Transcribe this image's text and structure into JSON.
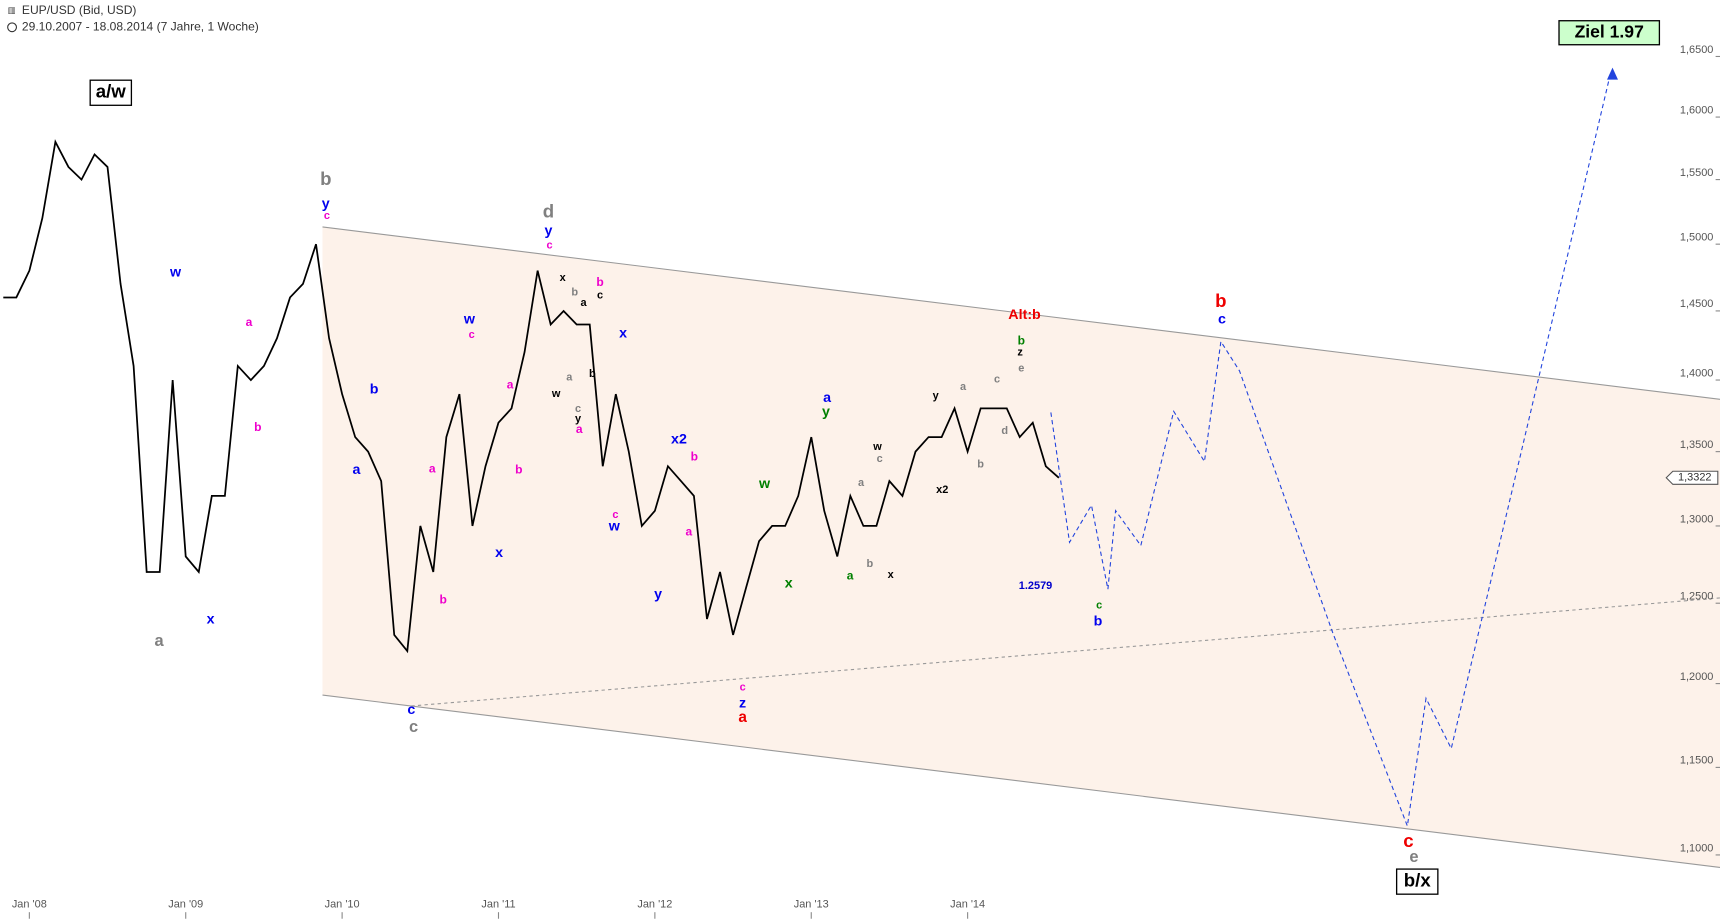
{
  "chart_data": {
    "type": "line",
    "title": "EUP/USD (Bid, USD)",
    "subtitle": "29.10.2007 - 18.08.2014 (7 Jahre, 1 Woche)",
    "color": "#000000",
    "log_scale": true,
    "categories": [
      null,
      null,
      "Jan '08",
      null,
      null,
      null,
      null,
      null,
      null,
      null,
      null,
      null,
      null,
      null,
      "Jan '09",
      null,
      null,
      null,
      null,
      null,
      null,
      null,
      null,
      null,
      null,
      null,
      "Jan '10",
      null,
      null,
      null,
      null,
      null,
      null,
      null,
      null,
      null,
      null,
      null,
      "Jan '11",
      null,
      null,
      null,
      null,
      null,
      null,
      null,
      null,
      null,
      null,
      null,
      "Jan '12",
      null,
      null,
      null,
      null,
      null,
      null,
      null,
      null,
      null,
      null,
      null,
      "Jan '13",
      null,
      null,
      null,
      null,
      null,
      null,
      null,
      null,
      null,
      null,
      null,
      "Jan '14",
      null,
      null,
      null,
      null,
      null,
      null,
      null
    ],
    "values": [
      1.46,
      1.46,
      1.48,
      1.52,
      1.58,
      1.56,
      1.55,
      1.57,
      1.56,
      1.47,
      1.41,
      1.27,
      1.27,
      1.4,
      1.28,
      1.27,
      1.32,
      1.32,
      1.41,
      1.4,
      1.41,
      1.43,
      1.46,
      1.47,
      1.5,
      1.43,
      1.39,
      1.36,
      1.35,
      1.33,
      1.23,
      1.22,
      1.3,
      1.27,
      1.36,
      1.39,
      1.3,
      1.34,
      1.37,
      1.38,
      1.42,
      1.48,
      1.44,
      1.45,
      1.44,
      1.44,
      1.34,
      1.39,
      1.35,
      1.3,
      1.31,
      1.34,
      1.33,
      1.32,
      1.24,
      1.27,
      1.23,
      1.26,
      1.29,
      1.3,
      1.3,
      1.32,
      1.36,
      1.31,
      1.28,
      1.32,
      1.3,
      1.3,
      1.33,
      1.32,
      1.35,
      1.36,
      1.36,
      1.38,
      1.35,
      1.38,
      1.38,
      1.38,
      1.36,
      1.37,
      1.34,
      1.3322
    ],
    "ylim": [
      1.078,
      1.698
    ],
    "yticks": [
      {
        "value": 1.1,
        "label": "1,1000"
      },
      {
        "value": 1.15,
        "label": "1,1500"
      },
      {
        "value": 1.2,
        "label": "1,2000"
      },
      {
        "value": 1.25,
        "label": "1,2500"
      },
      {
        "value": 1.3,
        "label": "1,3000"
      },
      {
        "value": 1.35,
        "label": "1,3500"
      },
      {
        "value": 1.4,
        "label": "1,4000"
      },
      {
        "value": 1.45,
        "label": "1,4500"
      },
      {
        "value": 1.5,
        "label": "1,5000"
      },
      {
        "value": 1.55,
        "label": "1,5500"
      },
      {
        "value": 1.6,
        "label": "1,6000"
      },
      {
        "value": 1.65,
        "label": "1,6500"
      }
    ],
    "last_price": {
      "value": 1.3322,
      "label": "1,3322"
    },
    "channel_color": "#fdf2ea",
    "forecast_color": "#2244dd",
    "annotations": [
      {
        "text": "a/w",
        "color": "#000000",
        "boxed": true
      },
      {
        "text": "b",
        "color": "#808080"
      },
      {
        "text": "y",
        "color": "#0000ee"
      },
      {
        "text": "c",
        "color": "#ee00cc"
      },
      {
        "text": "w",
        "color": "#0000ee"
      },
      {
        "text": "a",
        "color": "#ee00cc"
      },
      {
        "text": "b",
        "color": "#ee00cc"
      },
      {
        "text": "a",
        "color": "#808080"
      },
      {
        "text": "x",
        "color": "#0000ee"
      },
      {
        "text": "c",
        "color": "#0000ee"
      },
      {
        "text": "c",
        "color": "#808080"
      },
      {
        "text": "b",
        "color": "#0000ee"
      },
      {
        "text": "a",
        "color": "#0000ee"
      },
      {
        "text": "a",
        "color": "#ee00cc"
      },
      {
        "text": "b",
        "color": "#ee00cc"
      },
      {
        "text": "w",
        "color": "#0000ee"
      },
      {
        "text": "c",
        "color": "#ee00cc"
      },
      {
        "text": "a",
        "color": "#ee00cc"
      },
      {
        "text": "b",
        "color": "#ee00cc"
      },
      {
        "text": "x",
        "color": "#0000ee"
      },
      {
        "text": "d",
        "color": "#808080"
      },
      {
        "text": "y",
        "color": "#0000ee"
      },
      {
        "text": "c",
        "color": "#ee00cc"
      },
      {
        "text": "x",
        "color": "#000000"
      },
      {
        "text": "b",
        "color": "#808080"
      },
      {
        "text": "a",
        "color": "#000000"
      },
      {
        "text": "b",
        "color": "#ee00cc"
      },
      {
        "text": "c",
        "color": "#000000"
      },
      {
        "text": "w",
        "color": "#000000"
      },
      {
        "text": "a",
        "color": "#808080"
      },
      {
        "text": "b",
        "color": "#000000"
      },
      {
        "text": "c",
        "color": "#808080"
      },
      {
        "text": "y",
        "color": "#000000"
      },
      {
        "text": "a",
        "color": "#ee00cc"
      },
      {
        "text": "x",
        "color": "#0000ee"
      },
      {
        "text": "c",
        "color": "#ee00cc"
      },
      {
        "text": "w",
        "color": "#0000ee"
      },
      {
        "text": "x2",
        "color": "#0000ee"
      },
      {
        "text": "b",
        "color": "#ee00cc"
      },
      {
        "text": "y",
        "color": "#0000ee"
      },
      {
        "text": "a",
        "color": "#ee00cc"
      },
      {
        "text": "w",
        "color": "#008000"
      },
      {
        "text": "x",
        "color": "#008000"
      },
      {
        "text": "a",
        "color": "#0000ee"
      },
      {
        "text": "y",
        "color": "#008000"
      },
      {
        "text": "a",
        "color": "#008000"
      },
      {
        "text": "a",
        "color": "#808080"
      },
      {
        "text": "b",
        "color": "#808080"
      },
      {
        "text": "w",
        "color": "#000000"
      },
      {
        "text": "c",
        "color": "#808080"
      },
      {
        "text": "x",
        "color": "#000000"
      },
      {
        "text": "c",
        "color": "#ee00cc"
      },
      {
        "text": "z",
        "color": "#0000ee"
      },
      {
        "text": "a",
        "color": "#ee0000"
      },
      {
        "text": "y",
        "color": "#000000"
      },
      {
        "text": "x2",
        "color": "#000000"
      },
      {
        "text": "a",
        "color": "#808080"
      },
      {
        "text": "b",
        "color": "#808080"
      },
      {
        "text": "c",
        "color": "#808080"
      },
      {
        "text": "d",
        "color": "#808080"
      },
      {
        "text": "e",
        "color": "#808080"
      },
      {
        "text": "z",
        "color": "#000000"
      },
      {
        "text": "b",
        "color": "#008000"
      },
      {
        "text": "Alt:b",
        "color": "#ee0000"
      },
      {
        "text": "1.2579",
        "color": "#0000cc"
      },
      {
        "text": "c",
        "color": "#008000"
      },
      {
        "text": "b",
        "color": "#0000ee"
      },
      {
        "text": "b",
        "color": "#ee0000"
      },
      {
        "text": "c",
        "color": "#0000ee"
      },
      {
        "text": "c",
        "color": "#ee0000"
      },
      {
        "text": "e",
        "color": "#808080"
      },
      {
        "text": "b/x",
        "color": "#000000",
        "boxed": true
      },
      {
        "text": "Ziel 1.97",
        "color": "#000000",
        "boxed": true,
        "background": "#ccffcc"
      }
    ]
  }
}
